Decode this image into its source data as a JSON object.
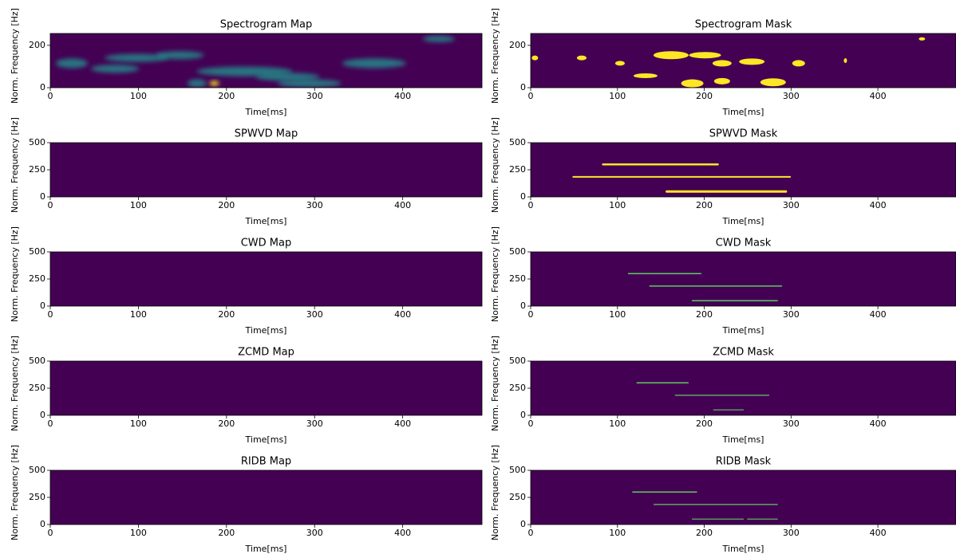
{
  "chart_data": [
    {
      "type": "heatmap",
      "title": "Spectrogram Map",
      "xlabel": "Time[ms]",
      "ylabel": "Norm. Frequency [Hz]",
      "xlim": [
        0,
        490
      ],
      "ylim": [
        0,
        256
      ],
      "xticks": [
        0,
        100,
        200,
        300,
        400
      ],
      "yticks": [
        0,
        200
      ]
    },
    {
      "type": "heatmap",
      "title": "Spectrogram Mask",
      "xlabel": "Time[ms]",
      "ylabel": "Norm. Frequency [Hz]",
      "xlim": [
        0,
        490
      ],
      "ylim": [
        0,
        256
      ],
      "xticks": [
        0,
        100,
        200,
        300,
        400
      ],
      "yticks": [
        0,
        200
      ]
    },
    {
      "type": "heatmap",
      "title": "SPWVD Map",
      "xlabel": "Time[ms]",
      "ylabel": "Norm. Frequency [Hz]",
      "xlim": [
        0,
        490
      ],
      "ylim": [
        0,
        500
      ],
      "xticks": [
        0,
        100,
        200,
        300,
        400
      ],
      "yticks": [
        0,
        250,
        500
      ]
    },
    {
      "type": "heatmap",
      "title": "SPWVD Mask",
      "xlabel": "Time[ms]",
      "ylabel": "Norm. Frequency [Hz]",
      "xlim": [
        0,
        490
      ],
      "ylim": [
        0,
        500
      ],
      "xticks": [
        0,
        100,
        200,
        300,
        400
      ],
      "yticks": [
        0,
        250,
        500
      ]
    },
    {
      "type": "heatmap",
      "title": "CWD Map",
      "xlabel": "Time[ms]",
      "ylabel": "Norm. Frequency [Hz]",
      "xlim": [
        0,
        490
      ],
      "ylim": [
        0,
        500
      ],
      "xticks": [
        0,
        100,
        200,
        300,
        400
      ],
      "yticks": [
        0,
        250,
        500
      ]
    },
    {
      "type": "heatmap",
      "title": "CWD Mask",
      "xlabel": "Time[ms]",
      "ylabel": "Norm. Frequency [Hz]",
      "xlim": [
        0,
        490
      ],
      "ylim": [
        0,
        500
      ],
      "xticks": [
        0,
        100,
        200,
        300,
        400
      ],
      "yticks": [
        0,
        250,
        500
      ]
    },
    {
      "type": "heatmap",
      "title": "ZCMD Map",
      "xlabel": "Time[ms]",
      "ylabel": "Norm. Frequency [Hz]",
      "xlim": [
        0,
        490
      ],
      "ylim": [
        0,
        500
      ],
      "xticks": [
        0,
        100,
        200,
        300,
        400
      ],
      "yticks": [
        0,
        250,
        500
      ]
    },
    {
      "type": "heatmap",
      "title": "ZCMD Mask",
      "xlabel": "Time[ms]",
      "ylabel": "Norm. Frequency [Hz]",
      "xlim": [
        0,
        490
      ],
      "ylim": [
        0,
        500
      ],
      "xticks": [
        0,
        100,
        200,
        300,
        400
      ],
      "yticks": [
        0,
        250,
        500
      ]
    },
    {
      "type": "heatmap",
      "title": "RIDB Map",
      "xlabel": "Time[ms]",
      "ylabel": "Norm. Frequency [Hz]",
      "xlim": [
        0,
        490
      ],
      "ylim": [
        0,
        500
      ],
      "xticks": [
        0,
        100,
        200,
        300,
        400
      ],
      "yticks": [
        0,
        250,
        500
      ]
    },
    {
      "type": "heatmap",
      "title": "RIDB Mask",
      "xlabel": "Time[ms]",
      "ylabel": "Norm. Frequency [Hz]",
      "xlim": [
        0,
        490
      ],
      "ylim": [
        0,
        500
      ],
      "xticks": [
        0,
        100,
        200,
        300,
        400
      ],
      "yticks": [
        0,
        250,
        500
      ]
    }
  ]
}
